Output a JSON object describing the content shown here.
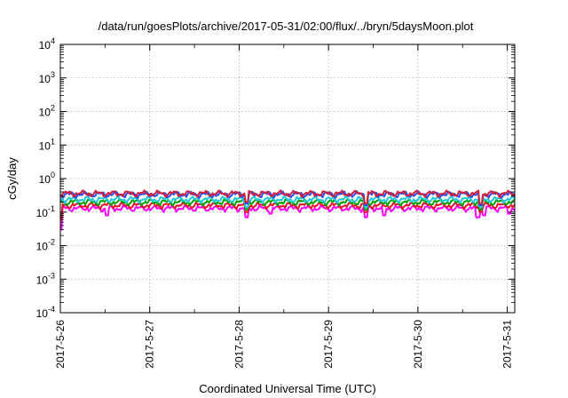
{
  "chart_data": {
    "type": "line",
    "title": "/data/run/goesPlots/archive/2017-05-31/02:00/flux/../bryn/5daysMoon.plot",
    "xlabel": "Coordinated Universal Time (UTC)",
    "ylabel": "cGy/day",
    "yscale": "log",
    "ylim": [
      0.0001,
      10000
    ],
    "xlim": [
      "2017-05-26T00:00",
      "2017-05-31T02:00"
    ],
    "x_ticks": [
      "2017-5-26",
      "2017-5-27",
      "2017-5-28",
      "2017-5-29",
      "2017-5-30",
      "2017-5-31"
    ],
    "y_ticks": [
      {
        "value": 0.0001,
        "base": "10",
        "exp": "-4"
      },
      {
        "value": 0.001,
        "base": "10",
        "exp": "-3"
      },
      {
        "value": 0.01,
        "base": "10",
        "exp": "-2"
      },
      {
        "value": 0.1,
        "base": "10",
        "exp": "-1"
      },
      {
        "value": 1,
        "base": "10",
        "exp": "0"
      },
      {
        "value": 10,
        "base": "10",
        "exp": "1"
      },
      {
        "value": 100,
        "base": "10",
        "exp": "2"
      },
      {
        "value": 1000,
        "base": "10",
        "exp": "3"
      },
      {
        "value": 10000,
        "base": "10",
        "exp": "4"
      }
    ],
    "grid": true,
    "series": [
      {
        "color": "#ff00ff",
        "base": 0.13,
        "dips": [
          [
            0.0,
            0.03
          ],
          [
            0.52,
            0.08
          ],
          [
            2.08,
            0.07
          ],
          [
            2.35,
            0.09
          ],
          [
            3.42,
            0.07
          ],
          [
            3.62,
            0.08
          ],
          [
            4.67,
            0.07
          ],
          [
            4.74,
            0.08
          ],
          [
            5.02,
            0.09
          ]
        ]
      },
      {
        "color": "#e8102a",
        "base": 0.16,
        "dips": [
          [
            0.0,
            0.06
          ],
          [
            2.08,
            0.1
          ],
          [
            3.42,
            0.1
          ],
          [
            4.7,
            0.1
          ]
        ]
      },
      {
        "color": "#00a000",
        "base": 0.2,
        "dips": [
          [
            2.08,
            0.12
          ],
          [
            3.42,
            0.12
          ],
          [
            4.7,
            0.12
          ]
        ]
      },
      {
        "color": "#20c8d8",
        "base": 0.24,
        "dips": [
          [
            2.08,
            0.14
          ],
          [
            3.42,
            0.14
          ],
          [
            4.7,
            0.14
          ]
        ]
      },
      {
        "color": "#2050ff",
        "base": 0.34,
        "dips": [
          [
            2.08,
            0.18
          ],
          [
            3.42,
            0.16
          ],
          [
            4.7,
            0.16
          ]
        ]
      },
      {
        "color": "#d0203a",
        "base": 0.36,
        "dips": [
          [
            2.08,
            0.2
          ],
          [
            3.42,
            0.18
          ],
          [
            4.7,
            0.18
          ]
        ]
      }
    ]
  }
}
